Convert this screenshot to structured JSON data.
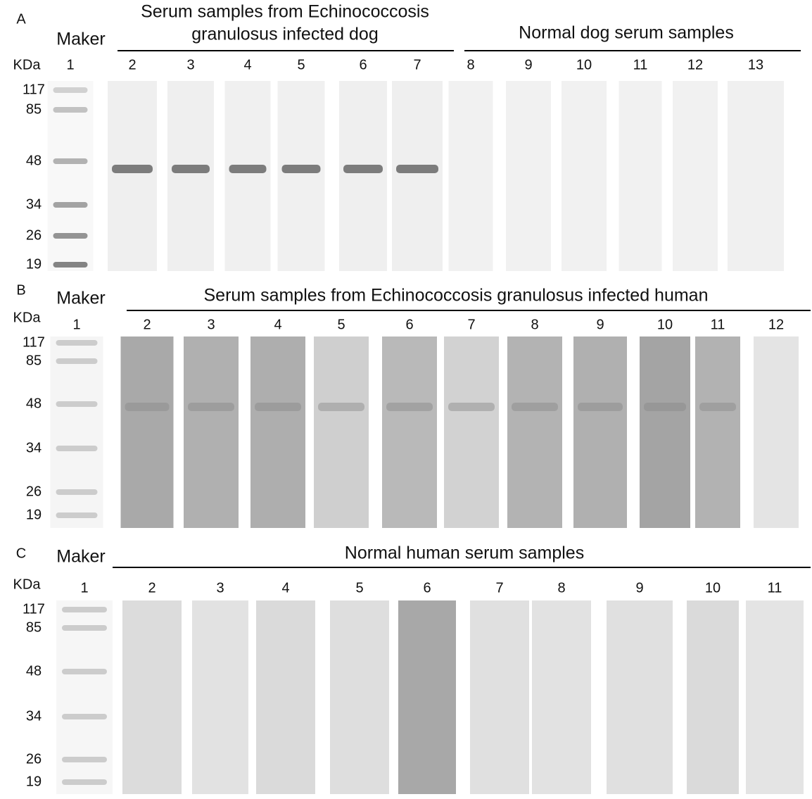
{
  "panels": [
    {
      "label": "A",
      "marker": "Maker",
      "unit": "KDa",
      "groups": [
        {
          "title": [
            "Serum samples from Echinococcosis",
            "granulosus infected dog"
          ]
        },
        {
          "title": [
            "Normal dog serum samples"
          ]
        }
      ],
      "lanes": [
        "1",
        "2",
        "3",
        "4",
        "5",
        "6",
        "7",
        "8",
        "9",
        "10",
        "11",
        "12",
        "13"
      ],
      "mw": [
        "117",
        "85",
        "48",
        "34",
        "26",
        "19"
      ]
    },
    {
      "label": "B",
      "marker": "Maker",
      "unit": "KDa",
      "groups": [
        {
          "title": [
            "Serum samples from Echinococcosis granulosus infected human"
          ]
        }
      ],
      "lanes": [
        "1",
        "2",
        "3",
        "4",
        "5",
        "6",
        "7",
        "8",
        "9",
        "10",
        "11",
        "12"
      ],
      "mw": [
        "117",
        "85",
        "48",
        "34",
        "26",
        "19"
      ]
    },
    {
      "label": "C",
      "marker": "Maker",
      "unit": "KDa",
      "groups": [
        {
          "title": [
            "Normal human serum samples"
          ]
        }
      ],
      "lanes": [
        "1",
        "2",
        "3",
        "4",
        "5",
        "6",
        "7",
        "8",
        "9",
        "10",
        "11"
      ],
      "mw": [
        "117",
        "85",
        "48",
        "34",
        "26",
        "19"
      ]
    }
  ]
}
